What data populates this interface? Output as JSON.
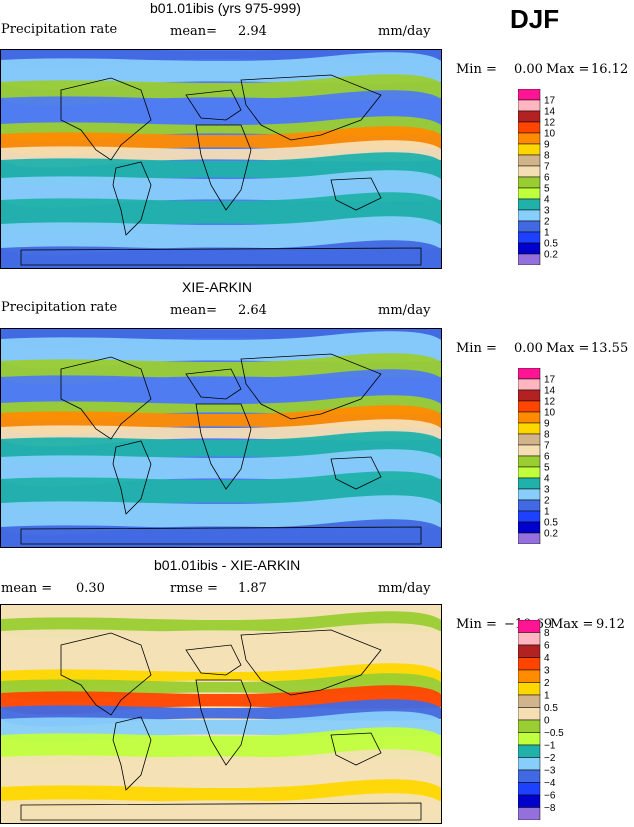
{
  "season": "DJF",
  "colorbar_colors": [
    "#ff1493",
    "#ffb6c1",
    "#b22222",
    "#ff4500",
    "#ff8c00",
    "#ffd700",
    "#d2b48c",
    "#f5deb3",
    "#9acd32",
    "#c0ff3e",
    "#20b2aa",
    "#87cefa",
    "#4169e1",
    "#1e40ff",
    "#0000cd",
    "#9370db"
  ],
  "panels": [
    {
      "title": "b01.01ibis (yrs 975-999)",
      "left_label": "Precipitation rate",
      "mean_label": "mean=",
      "mean_value": "2.94",
      "units": "mm/day",
      "min_label": "Min =",
      "min_value": "0.00",
      "max_label": "Max =",
      "max_value": "16.12",
      "levels": [
        "17",
        "14",
        "12",
        "10",
        "9",
        "8",
        "7",
        "6",
        "5",
        "4",
        "3",
        "2",
        "1",
        "0.5",
        "0.2"
      ],
      "bg": "#4f7cf0"
    },
    {
      "title": "XIE-ARKIN",
      "left_label": "Precipitation rate",
      "mean_label": "mean=",
      "mean_value": "2.64",
      "units": "mm/day",
      "min_label": "Min =",
      "min_value": "0.00",
      "max_label": "Max =",
      "max_value": "13.55",
      "levels": [
        "17",
        "14",
        "12",
        "10",
        "9",
        "8",
        "7",
        "6",
        "5",
        "4",
        "3",
        "2",
        "1",
        "0.5",
        "0.2"
      ],
      "bg": "#4f7cf0"
    },
    {
      "title": "b01.01ibis - XIE-ARKIN",
      "mean_label": "mean =",
      "mean_value": "0.30",
      "rmse_label": "rmse =",
      "rmse_value": "1.87",
      "units": "mm/day",
      "min_label": "Min =",
      "min_value": "−10.69",
      "max_label": "Max =",
      "max_value": "9.12",
      "levels": [
        "8",
        "6",
        "4",
        "3",
        "2",
        "1",
        "0.5",
        "0",
        "−0.5",
        "−1",
        "−2",
        "−3",
        "−4",
        "−6",
        "−8"
      ],
      "bg": "#f3e2b6"
    }
  ]
}
